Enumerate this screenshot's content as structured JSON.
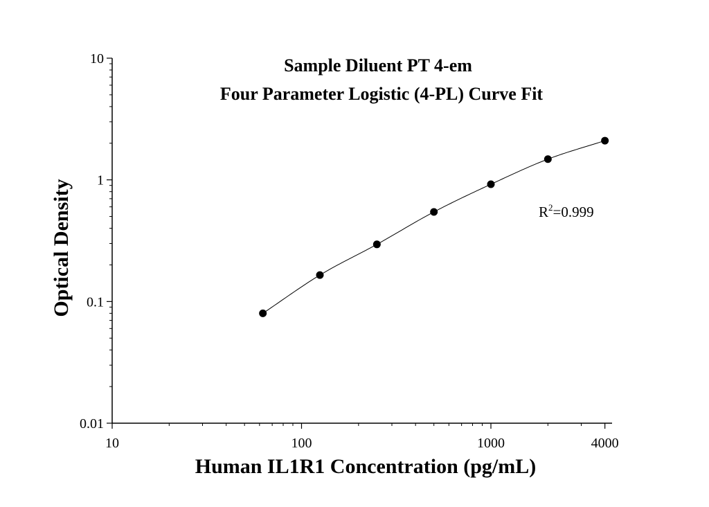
{
  "chart_data": {
    "type": "scatter",
    "title": "Sample Diluent PT 4-em",
    "subtitle": "Four Parameter Logistic (4-PL) Curve Fit",
    "xlabel": "Human IL1R1 Concentration (pg/mL)",
    "ylabel": "Optical Density",
    "x_scale": "log",
    "y_scale": "log",
    "xlim": [
      10,
      4500
    ],
    "ylim": [
      0.01,
      10
    ],
    "x_ticks": [
      10,
      100,
      1000,
      4000
    ],
    "x_tick_labels": [
      "10",
      "100",
      "1000",
      "4000"
    ],
    "y_ticks": [
      0.01,
      0.1,
      1,
      10
    ],
    "y_tick_labels": [
      "0.01",
      "0.1",
      "1",
      "10"
    ],
    "grid": false,
    "legend": "none",
    "series": [
      {
        "x": [
          62.5,
          125,
          250,
          500,
          1000,
          2000,
          4000
        ],
        "y": [
          0.08,
          0.165,
          0.295,
          0.545,
          0.92,
          1.48,
          2.1
        ]
      }
    ],
    "annotations": [
      {
        "text": "R",
        "superscript": "2",
        "suffix": "=0.999"
      }
    ],
    "colors": {
      "marker": "#000000",
      "curve": "#000000",
      "axis": "#000000"
    }
  }
}
